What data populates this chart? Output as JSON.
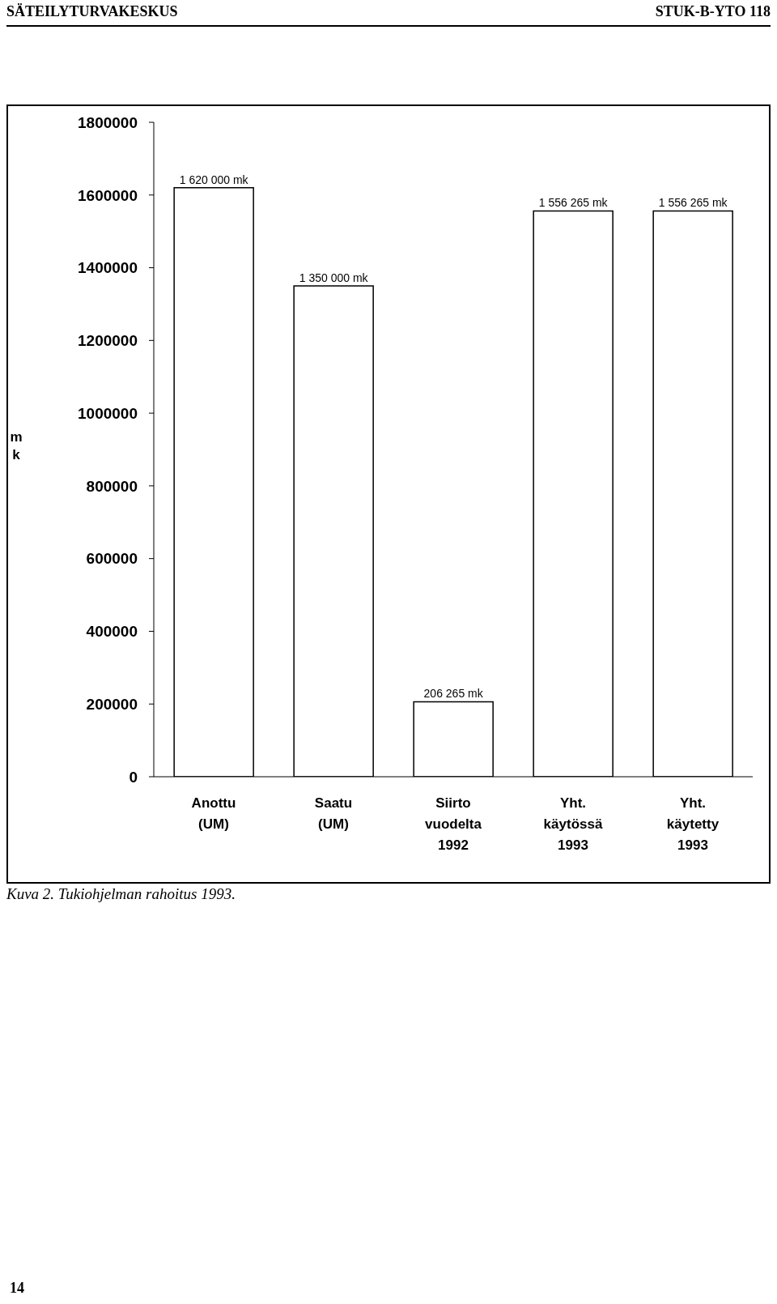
{
  "chart_data": {
    "type": "bar",
    "ylabel": "mk",
    "categories": [
      "Anottu\n(UM)",
      "Saatu\n(UM)",
      "Siirto\nvuodelta\n1992",
      "Yht.\nkäytössä\n1993",
      "Yht.\nkäytetty\n1993"
    ],
    "values": [
      1620000,
      1350000,
      206265,
      1556265,
      1556265
    ],
    "value_labels": [
      "1 620 000 mk",
      "1 350 000 mk",
      "206 265 mk",
      "1 556 265 mk",
      "1 556 265 mk"
    ],
    "color": "#ffffff",
    "ylim": [
      0,
      1800000
    ],
    "yticks": [
      0,
      200000,
      400000,
      600000,
      800000,
      1000000,
      1200000,
      1400000,
      1600000,
      1800000
    ],
    "grid": false,
    "legend": false,
    "annotations": [
      "SÄTEILYTURVAKESKUS",
      "STUK-B-YTO 118",
      "Kuva 2. Tukiohjelman rahoitus 1993.",
      "14"
    ]
  }
}
